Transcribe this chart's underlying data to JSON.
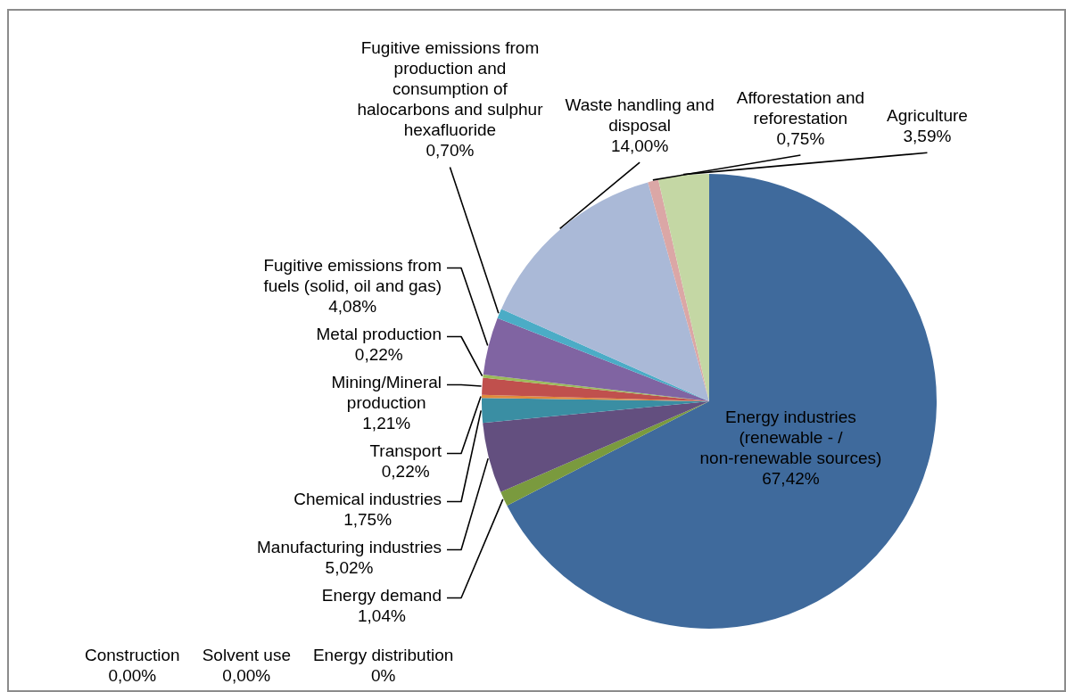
{
  "chart_data": {
    "type": "pie",
    "categories": [
      "Energy industries (renewable - / non-renewable sources)",
      "Energy demand",
      "Manufacturing industries",
      "Chemical industries",
      "Transport",
      "Mining/Mineral production",
      "Metal production",
      "Fugitive emissions from fuels (solid, oil and gas)",
      "Fugitive emissions from production and consumption of halocarbons and sulphur hexafluoride",
      "Waste handling and disposal",
      "Afforestation and reforestation",
      "Agriculture",
      "Construction",
      "Solvent use",
      "Energy distribution"
    ],
    "values": [
      67.42,
      1.04,
      5.02,
      1.75,
      0.22,
      1.21,
      0.22,
      4.08,
      0.7,
      14.0,
      0.75,
      3.59,
      0,
      0,
      0
    ],
    "colors": [
      "#3f6a9c",
      "#7a9a3e",
      "#634f7f",
      "#3a8ea3",
      "#e08b3c",
      "#c0504d",
      "#9bbb59",
      "#8064a2",
      "#4bacc6",
      "#aab9d7",
      "#dba7a6",
      "#c4d7a4",
      "#4f81bd",
      "#f79646",
      "#2c4d75"
    ],
    "value_labels": [
      "67,42%",
      "1,04%",
      "5,02%",
      "1,75%",
      "0,22%",
      "1,21%",
      "0,22%",
      "4,08%",
      "0,70%",
      "14,00%",
      "0,75%",
      "3,59%",
      "0,00%",
      "0,00%",
      "0%"
    ]
  }
}
